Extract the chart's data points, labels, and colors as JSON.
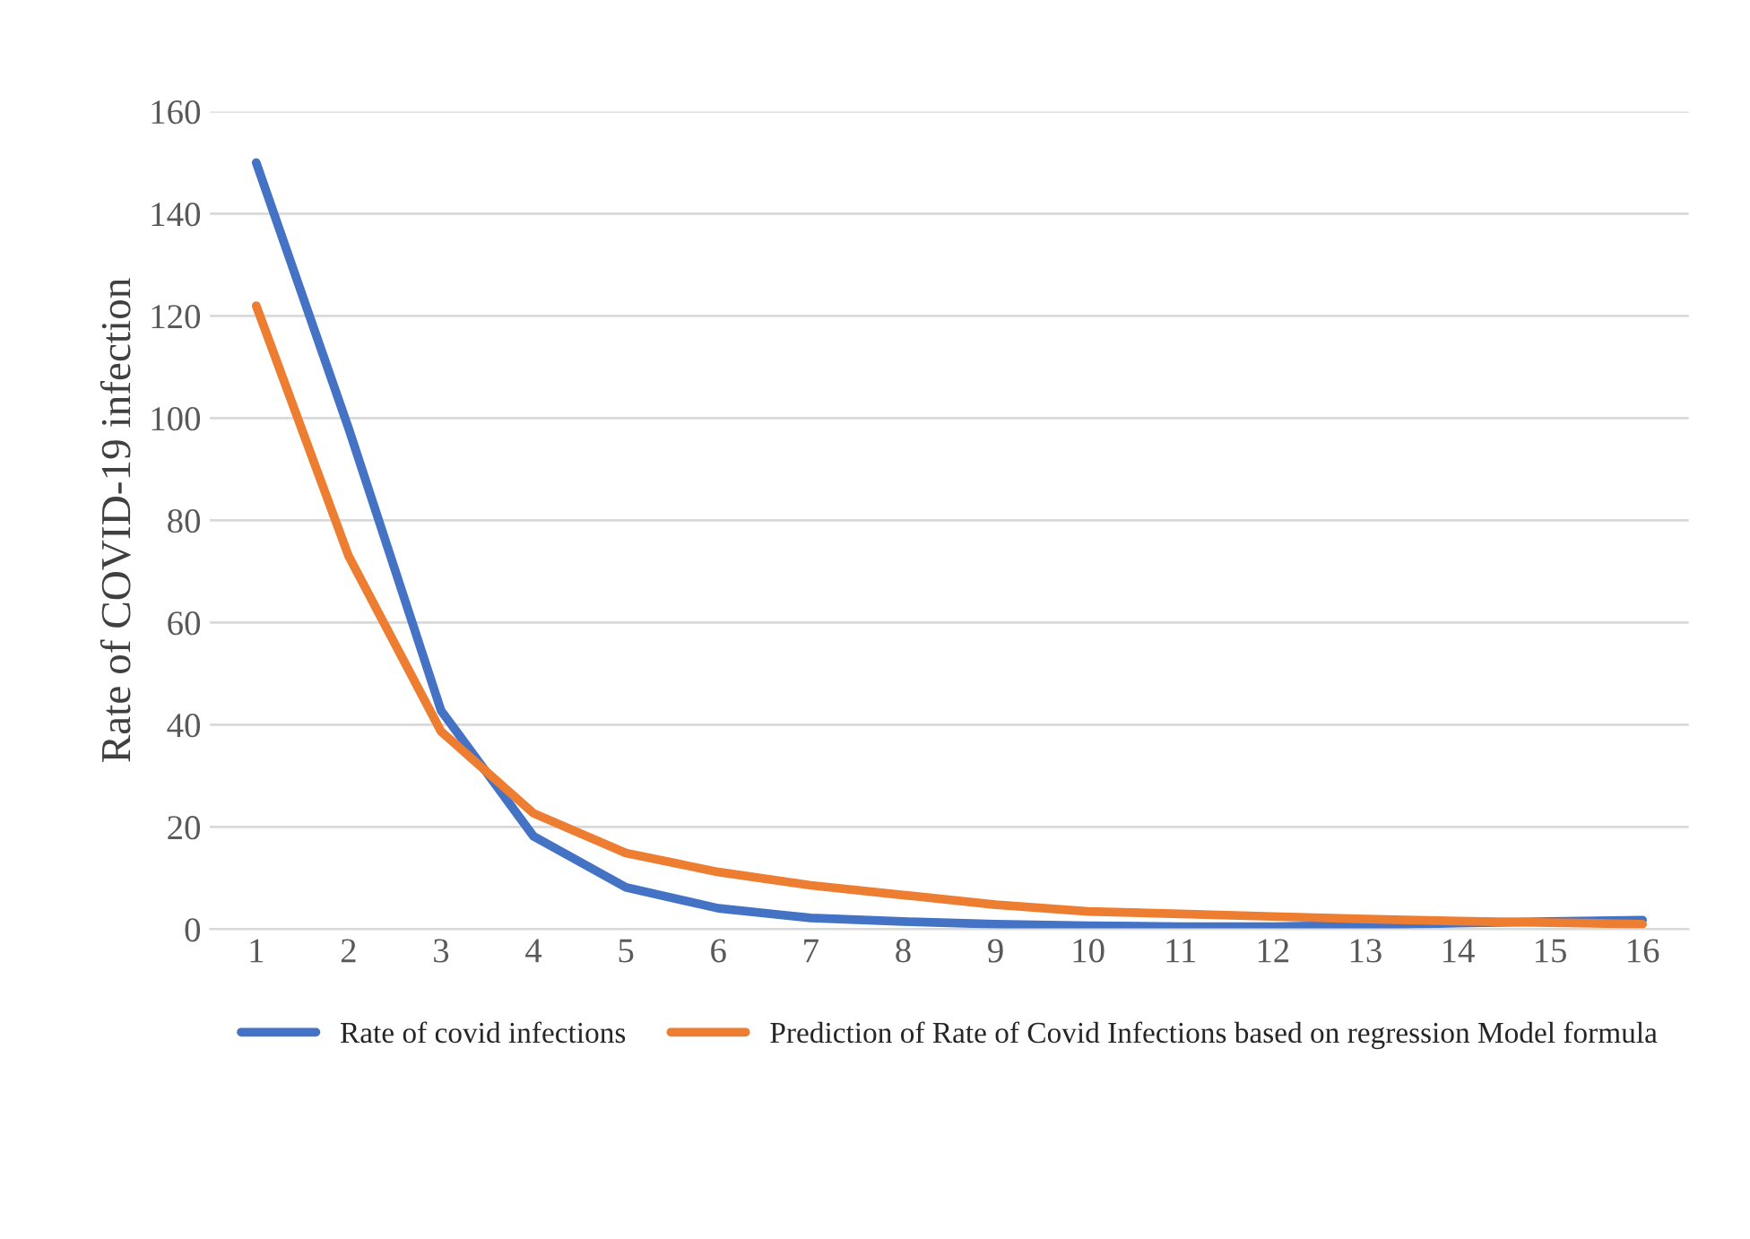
{
  "chart_data": {
    "type": "line",
    "ylabel": "Rate of COVID-19 infection",
    "categories": [
      "1",
      "2",
      "3",
      "4",
      "5",
      "6",
      "7",
      "8",
      "9",
      "10",
      "11",
      "12",
      "13",
      "14",
      "15",
      "16"
    ],
    "series": [
      {
        "name": "Rate of covid infections",
        "color": "#4472c4",
        "values": [
          150,
          98,
          42.8,
          18.2,
          8.2,
          4.1,
          2.2,
          1.5,
          1,
          0.7,
          0.5,
          0.5,
          0.8,
          1.2,
          1.5,
          1.8
        ]
      },
      {
        "name": "Prediction of Rate of Covid Infections based on regression Model formula",
        "color": "#ed7d31",
        "values": [
          122,
          73,
          38.7,
          22.7,
          14.9,
          11.2,
          8.6,
          6.7,
          4.8,
          3.5,
          3,
          2.5,
          2,
          1.6,
          1.3,
          1
        ]
      }
    ],
    "ylim": [
      0,
      160
    ],
    "yticks": [
      0,
      20,
      40,
      60,
      80,
      100,
      120,
      140,
      160
    ],
    "grid": "y",
    "legend": "bottom",
    "marker": "none",
    "line_style": "solid"
  }
}
